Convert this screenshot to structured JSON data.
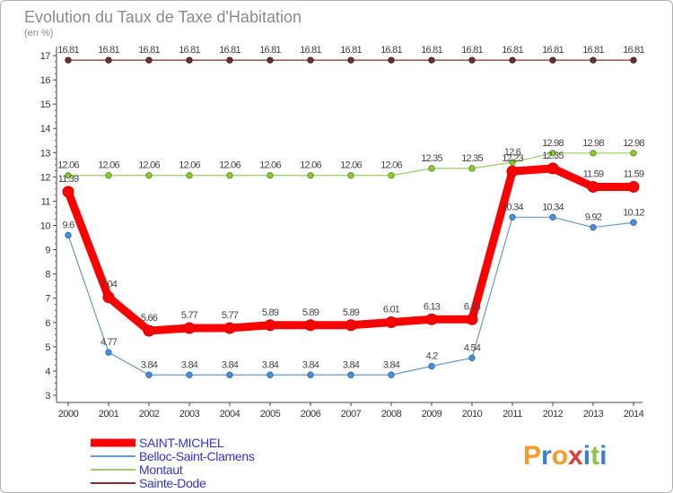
{
  "chart_data": {
    "type": "line",
    "title": "Evolution du Taux de Taxe d'Habitation",
    "ylabel": "(en %)",
    "x": [
      "2000",
      "2001",
      "2002",
      "2003",
      "2004",
      "2005",
      "2006",
      "2007",
      "2008",
      "2009",
      "2010",
      "2011",
      "2012",
      "2013",
      "2014"
    ],
    "ylim": [
      3,
      17
    ],
    "yticks": [
      3,
      4,
      5,
      6,
      7,
      8,
      9,
      10,
      11,
      12,
      13,
      14,
      15,
      16,
      17
    ],
    "grid": false,
    "legend": "bottom-left",
    "series": [
      {
        "name": "SAINT-MICHEL",
        "color": "#ff0000",
        "values": [
          11.39,
          7.04,
          5.66,
          5.77,
          5.77,
          5.89,
          5.89,
          5.89,
          6.01,
          6.13,
          6.13,
          12.23,
          12.35,
          11.59,
          11.59
        ]
      },
      {
        "name": "Belloc-Saint-Clamens",
        "color": "#6699cc",
        "values": [
          9.6,
          4.77,
          3.84,
          3.84,
          3.84,
          3.84,
          3.84,
          3.84,
          3.84,
          4.2,
          4.54,
          10.34,
          10.34,
          9.92,
          10.12
        ]
      },
      {
        "name": "Montaut",
        "color": "#99cc66",
        "values": [
          12.06,
          12.06,
          12.06,
          12.06,
          12.06,
          12.06,
          12.06,
          12.06,
          12.06,
          12.35,
          12.35,
          12.6,
          12.98,
          12.98,
          12.98
        ]
      },
      {
        "name": "Sainte-Dode",
        "color": "#773333",
        "values": [
          16.81,
          16.81,
          16.81,
          16.81,
          16.81,
          16.81,
          16.81,
          16.81,
          16.81,
          16.81,
          16.81,
          16.81,
          16.81,
          16.81,
          16.81
        ]
      }
    ],
    "labels": {
      "SAINT-MICHEL": [
        "11.39",
        "7.04",
        "5.66",
        "5.77",
        "5.77",
        "5.89",
        "5.89",
        "5.89",
        "6.01",
        "6.13",
        "6.13",
        "12.23",
        "12.35",
        "11.59",
        "11.59"
      ],
      "Belloc-Saint-Clamens": [
        "9.6",
        "4.77",
        "3.84",
        "3.84",
        "3.84",
        "3.84",
        "3.84",
        "3.84",
        "3.84",
        "4.2",
        "4.54",
        "10.34",
        "10.34",
        "9.92",
        "10.12"
      ],
      "Montaut": [
        "12.06",
        "12.06",
        "12.06",
        "12.06",
        "12.06",
        "12.06",
        "12.06",
        "12.06",
        "12.06",
        "12.35",
        "12.35",
        "12.6",
        "12.98",
        "12.98",
        "12.98"
      ],
      "Sainte-Dode": [
        "16.81",
        "16.81",
        "16.81",
        "16.81",
        "16.81",
        "16.81",
        "16.81",
        "16.81",
        "16.81",
        "16.81",
        "16.81",
        "16.81",
        "16.81",
        "16.81",
        "16.81"
      ]
    }
  },
  "logo": {
    "text": "Proxiti",
    "colors": [
      "#f39a2b",
      "#3a7fd5",
      "#f39a2b",
      "#e23a3a",
      "#3a7fd5",
      "#8bc34a",
      "#3a7fd5"
    ]
  }
}
